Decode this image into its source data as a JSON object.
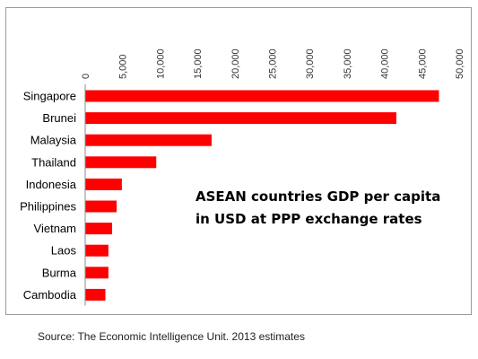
{
  "chart_data": {
    "type": "bar",
    "orientation": "horizontal",
    "categories": [
      "Singapore",
      "Brunei",
      "Malaysia",
      "Thailand",
      "Indonesia",
      "Philippines",
      "Vietnam",
      "Laos",
      "Burma",
      "Cambodia"
    ],
    "values": [
      47300,
      41600,
      16900,
      9500,
      4900,
      4200,
      3600,
      3100,
      3100,
      2700
    ],
    "xlim": [
      0,
      50000
    ],
    "xticks": [
      "0",
      "5,000",
      "10,000",
      "15,000",
      "20,000",
      "25,000",
      "30,000",
      "35,000",
      "40,000",
      "45,000",
      "50,000"
    ],
    "x_axis_position": "top",
    "grid": false,
    "annotation": [
      "ASEAN countries GDP per capita",
      "in USD at PPP exchange rates"
    ],
    "bar_color": "#ff0000"
  },
  "source": "Source: The Economic Intelligence Unit. 2013 estimates"
}
